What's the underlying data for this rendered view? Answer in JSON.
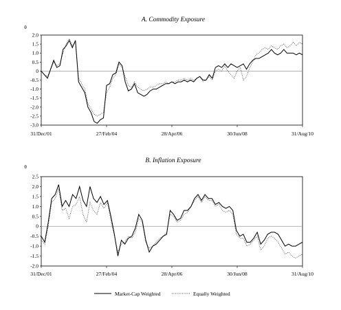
{
  "legend": {
    "items": [
      {
        "label": "Market-Cap Weighted",
        "style": "solid"
      },
      {
        "label": "Equally Weighted",
        "style": "dotted"
      }
    ]
  },
  "chart_data": [
    {
      "type": "line",
      "title": "A. Commodity Exposure",
      "ylabel": "θ",
      "xlabel": "",
      "ylim": [
        -3.0,
        2.0
      ],
      "yticks": [
        "2.0",
        "1.5",
        "1.0",
        "0.5",
        "0",
        "-0.5",
        "-1.0",
        "-1.5",
        "-2.0",
        "-2.5",
        "-3.0"
      ],
      "xticks": [
        "31/Dec/01",
        "27/Feb/04",
        "28/Apr/06",
        "30/Jun/08",
        "31/Aug/10"
      ],
      "series": [
        {
          "name": "Market-Cap Weighted",
          "values": [
            0,
            -0.2,
            -0.4,
            0.1,
            0.6,
            0.2,
            0.3,
            1.2,
            1.4,
            1.7,
            1.3,
            1.7,
            -0.6,
            -0.9,
            -1.2,
            -2.0,
            -2.3,
            -2.8,
            -2.9,
            -2.7,
            -2.6,
            -0.8,
            -0.7,
            -0.2,
            -0.1,
            0.5,
            0.3,
            -0.6,
            -1.1,
            -1.0,
            -0.7,
            -1.2,
            -1.3,
            -1.4,
            -1.3,
            -1.1,
            -1.0,
            -1.0,
            -0.9,
            -0.8,
            -0.7,
            -0.7,
            -0.6,
            -0.7,
            -0.6,
            -0.6,
            -0.5,
            -0.6,
            -0.5,
            -0.6,
            -0.4,
            -0.3,
            -0.5,
            -0.5,
            -0.2,
            -0.4,
            0.2,
            0.3,
            0.2,
            0.4,
            0.2,
            0.4,
            0.3,
            0.2,
            0.3,
            0.4,
            0.1,
            0.4,
            0.6,
            0.7,
            0.7,
            0.8,
            0.9,
            1.0,
            1.2,
            1.0,
            0.9,
            1.0,
            1.2,
            1.0,
            1.0,
            1.0,
            0.9,
            1.0,
            0.9
          ]
        },
        {
          "name": "Equally Weighted",
          "values": [
            0,
            -0.2,
            -0.3,
            0.1,
            0.5,
            0.3,
            0.4,
            1.0,
            1.5,
            1.8,
            1.4,
            1.6,
            -0.4,
            -0.7,
            -1.0,
            -1.8,
            -2.1,
            -2.4,
            -2.5,
            -2.4,
            -2.3,
            -1.2,
            -0.9,
            -0.4,
            -0.2,
            0.4,
            0.2,
            -0.3,
            -0.8,
            -0.9,
            -0.6,
            -0.9,
            -1.0,
            -1.1,
            -1.0,
            -0.9,
            -0.9,
            -0.8,
            -0.7,
            -0.7,
            -0.6,
            -0.7,
            -0.6,
            -0.6,
            -0.5,
            -0.5,
            -0.4,
            -0.5,
            -0.4,
            -0.5,
            -0.4,
            -0.3,
            -0.6,
            -0.5,
            -0.3,
            -0.5,
            0.0,
            0.1,
            0.0,
            0.3,
            0.0,
            -0.2,
            -0.4,
            0.0,
            0.2,
            -0.5,
            -0.3,
            0.2,
            0.5,
            0.9,
            1.0,
            1.2,
            1.3,
            1.2,
            1.4,
            1.3,
            1.2,
            1.4,
            1.5,
            1.3,
            1.4,
            1.6,
            1.4,
            1.6,
            1.5
          ]
        }
      ]
    },
    {
      "type": "line",
      "title": "B. Inflation Exposure",
      "ylabel": "θ",
      "xlabel": "",
      "ylim": [
        -2.0,
        2.5
      ],
      "yticks": [
        "2.5",
        "2.0",
        "1.5",
        "1.0",
        "0.5",
        "0",
        "-0.5",
        "-1.0",
        "-1.5",
        "-2.0"
      ],
      "xticks": [
        "31/Dec/01",
        "27/Feb/04",
        "28/Apr/06",
        "30/Jun/08",
        "31/Aug/10"
      ],
      "series": [
        {
          "name": "Market-Cap Weighted",
          "values": [
            -0.5,
            -0.8,
            0.2,
            1.4,
            1.6,
            2.1,
            1.0,
            1.3,
            1.0,
            1.6,
            1.4,
            2.0,
            1.3,
            1.0,
            2.0,
            1.4,
            1.2,
            1.5,
            1.1,
            1.3,
            0.5,
            -0.4,
            -1.5,
            -0.7,
            -0.9,
            -0.6,
            -0.5,
            -0.1,
            0.6,
            0.3,
            -0.7,
            -1.3,
            -1.0,
            -0.9,
            -0.7,
            -0.5,
            -0.4,
            0.8,
            0.6,
            0.3,
            0.4,
            0.8,
            0.8,
            1.0,
            1.4,
            1.6,
            1.3,
            1.6,
            1.4,
            1.4,
            1.1,
            1.2,
            1.0,
            0.9,
            1.0,
            0.8,
            -0.2,
            -0.5,
            -0.4,
            -0.8,
            -0.8,
            -0.6,
            -0.3,
            -0.9,
            -0.7,
            -0.4,
            -0.3,
            -0.3,
            -0.4,
            -0.7,
            -1.0,
            -0.9,
            -1.0,
            -1.0,
            -0.9,
            -0.8
          ]
        },
        {
          "name": "Equally Weighted",
          "values": [
            -0.7,
            -0.9,
            0.0,
            1.2,
            1.4,
            1.9,
            0.8,
            0.9,
            0.4,
            1.0,
            1.1,
            1.5,
            0.6,
            0.2,
            1.2,
            0.8,
            0.6,
            1.2,
            0.9,
            1.2,
            0.3,
            -0.5,
            -1.3,
            -0.9,
            -0.8,
            -0.5,
            -0.6,
            -0.3,
            0.4,
            0.2,
            -0.8,
            -1.1,
            -1.0,
            -0.8,
            -0.6,
            -0.5,
            -0.3,
            0.6,
            0.5,
            0.2,
            0.3,
            0.6,
            0.7,
            1.0,
            1.3,
            1.5,
            1.2,
            1.5,
            1.3,
            1.3,
            1.0,
            1.1,
            0.8,
            0.7,
            0.8,
            0.6,
            -0.4,
            -0.6,
            -0.6,
            -1.0,
            -0.9,
            -0.7,
            -0.5,
            -1.2,
            -1.0,
            -0.6,
            -0.5,
            -0.6,
            -0.8,
            -1.1,
            -1.4,
            -1.3,
            -1.5,
            -1.6,
            -1.5,
            -1.4
          ]
        }
      ]
    }
  ]
}
